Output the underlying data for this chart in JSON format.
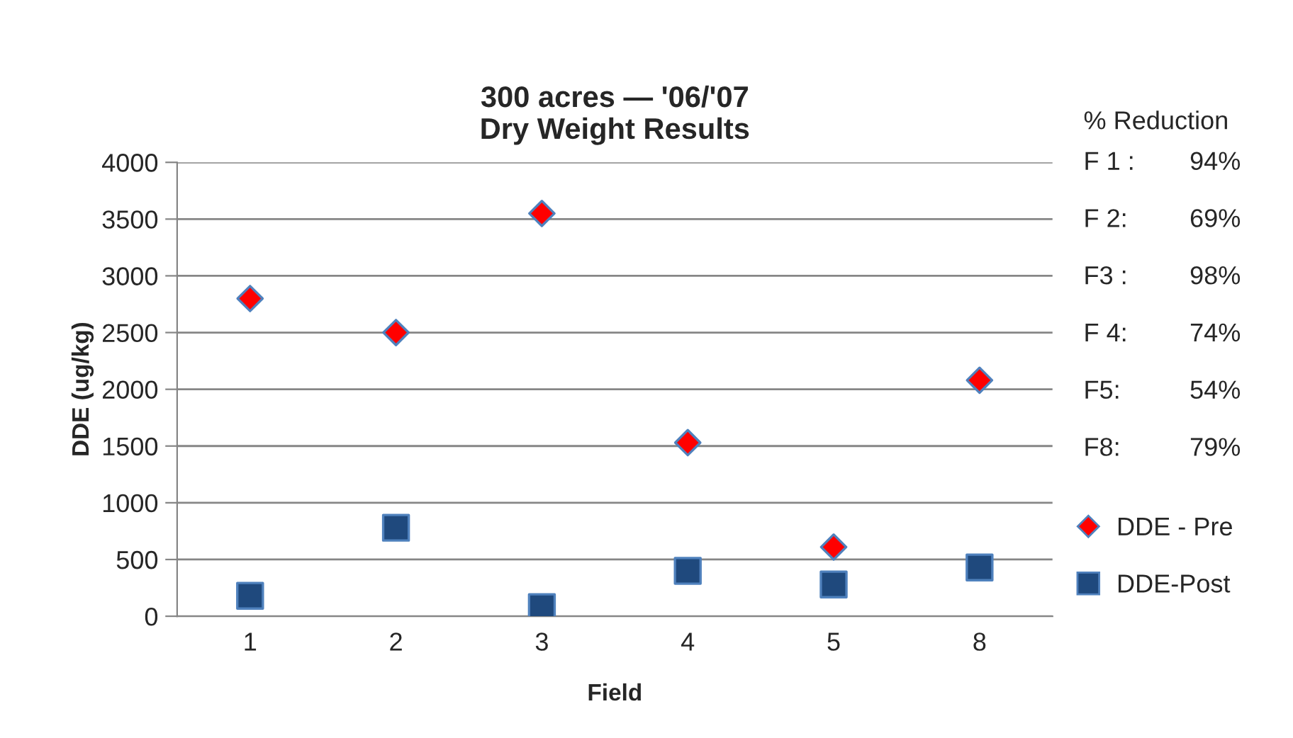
{
  "chart_data": {
    "type": "scatter",
    "title": "300 acres — '06/'07\nDry Weight Results",
    "xlabel": "Field",
    "ylabel": "DDE (ug/kg)",
    "categories": [
      "1",
      "2",
      "3",
      "4",
      "5",
      "8"
    ],
    "series": [
      {
        "name": "DDE - Pre",
        "color": "#ff0000",
        "marker": "diamond",
        "values": [
          2800,
          2500,
          3550,
          1530,
          610,
          2080
        ]
      },
      {
        "name": "DDE-Post",
        "color": "#1f497d",
        "marker": "square",
        "values": [
          180,
          780,
          80,
          400,
          280,
          430
        ]
      }
    ],
    "ylim": [
      0,
      4000
    ],
    "yticks": [
      0,
      500,
      1000,
      1500,
      2000,
      2500,
      3000,
      3500,
      4000
    ],
    "grid": "y",
    "legend": "right",
    "annotations": [
      "% Reduction",
      "F 1 :",
      "94%",
      "F 2:",
      "69%",
      "F3 :",
      "98%",
      "F 4:",
      "74%",
      "F5:",
      "54%",
      "F8:",
      "79%"
    ]
  }
}
